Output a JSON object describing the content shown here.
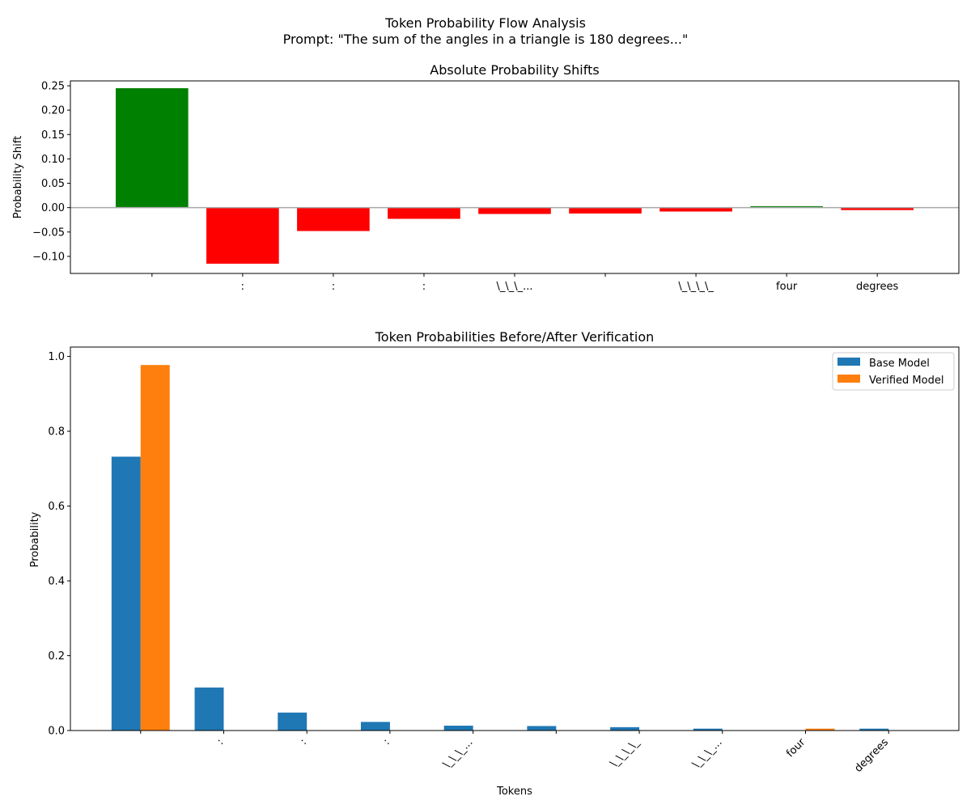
{
  "figure": {
    "title_line1": "Token Probability Flow Analysis",
    "title_line2": "Prompt: \"The sum of the angles in a triangle is 180 degrees...\""
  },
  "chart_data": [
    {
      "type": "bar",
      "title": "Absolute Probability Shifts",
      "xlabel": "",
      "ylabel": "Probability Shift",
      "ylim": [
        -0.135,
        0.26
      ],
      "yticks": [
        -0.1,
        -0.05,
        0.0,
        0.05,
        0.1,
        0.15,
        0.2,
        0.25
      ],
      "ytick_labels": [
        "−0.10",
        "−0.05",
        "0.00",
        "0.05",
        "0.10",
        "0.15",
        "0.20",
        "0.25"
      ],
      "categories": [
        "",
        ":",
        ":",
        ":",
        "\\_\\_\\_...",
        "",
        "\\_\\_\\_\\_",
        "four",
        "degrees"
      ],
      "values": [
        0.245,
        -0.115,
        -0.048,
        -0.023,
        -0.013,
        -0.012,
        -0.008,
        0.003,
        -0.005
      ],
      "colors": {
        "positive": "#008000",
        "negative": "#ff0000",
        "zero_line": "#a9a9a9"
      }
    },
    {
      "type": "bar",
      "title": "Token Probabilities Before/After Verification",
      "xlabel": "Tokens",
      "ylabel": "Probability",
      "ylim": [
        0,
        1.025
      ],
      "yticks": [
        0.0,
        0.2,
        0.4,
        0.6,
        0.8,
        1.0
      ],
      "ytick_labels": [
        "0.0",
        "0.2",
        "0.4",
        "0.6",
        "0.8",
        "1.0"
      ],
      "categories": [
        "",
        ":",
        ":",
        ":",
        "\\_\\_\\_...",
        "",
        "\\_\\_\\_\\_",
        "\\_\\_\\_...",
        "four",
        "degrees"
      ],
      "legend_position": "top-right",
      "series": [
        {
          "name": "Base Model",
          "color": "#1f77b4",
          "values": [
            0.732,
            0.115,
            0.048,
            0.023,
            0.013,
            0.012,
            0.009,
            0.005,
            0.0,
            0.005
          ]
        },
        {
          "name": "Verified Model",
          "color": "#ff7f0e",
          "values": [
            0.977,
            0.0,
            0.0,
            0.0,
            0.0,
            0.0,
            0.0,
            0.0,
            0.005,
            0.0
          ]
        }
      ]
    }
  ]
}
